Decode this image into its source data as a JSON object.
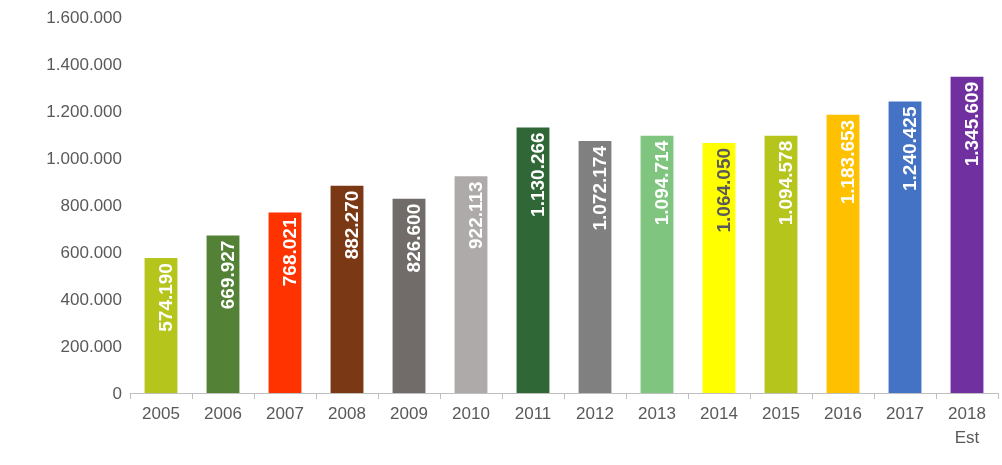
{
  "chart_data": {
    "type": "bar",
    "categories": [
      "2005",
      "2006",
      "2007",
      "2008",
      "2009",
      "2010",
      "2011",
      "2012",
      "2013",
      "2014",
      "2015",
      "2016",
      "2017",
      "2018\nEst"
    ],
    "values": [
      574190,
      669927,
      768021,
      882270,
      826600,
      922113,
      1130266,
      1072174,
      1094714,
      1064050,
      1094578,
      1183653,
      1240425,
      1345609
    ],
    "value_labels": [
      "574.190",
      "669.927",
      "768.021",
      "882.270",
      "826.600",
      "922.113",
      "1.130.266",
      "1.072.174",
      "1.094.714",
      "1.064.050",
      "1.094.578",
      "1.183.653",
      "1.240.425",
      "1.345.609"
    ],
    "colors": [
      "#b5c51c",
      "#538135",
      "#ff3300",
      "#7b3814",
      "#716c6a",
      "#aeaaaa",
      "#2f6836",
      "#808080",
      "#7fc47f",
      "#ffff00",
      "#b5c51c",
      "#ffc000",
      "#4472c4",
      "#7030a0"
    ],
    "ylim": [
      0,
      1600000
    ],
    "yticks": [
      0,
      {
        "value": 200000,
        "label": "200.000"
      },
      {
        "value": 400000,
        "label": "400.000"
      },
      {
        "value": 600000,
        "label": "600.000"
      },
      {
        "value": 800000,
        "label": "800.000"
      },
      {
        "value": 1000000,
        "label": "1.000.000"
      },
      {
        "value": 1200000,
        "label": "1.200.000"
      },
      {
        "value": 1400000,
        "label": "1.400.000"
      },
      {
        "value": 1600000,
        "label": "1.600.000"
      }
    ],
    "grid": false
  }
}
